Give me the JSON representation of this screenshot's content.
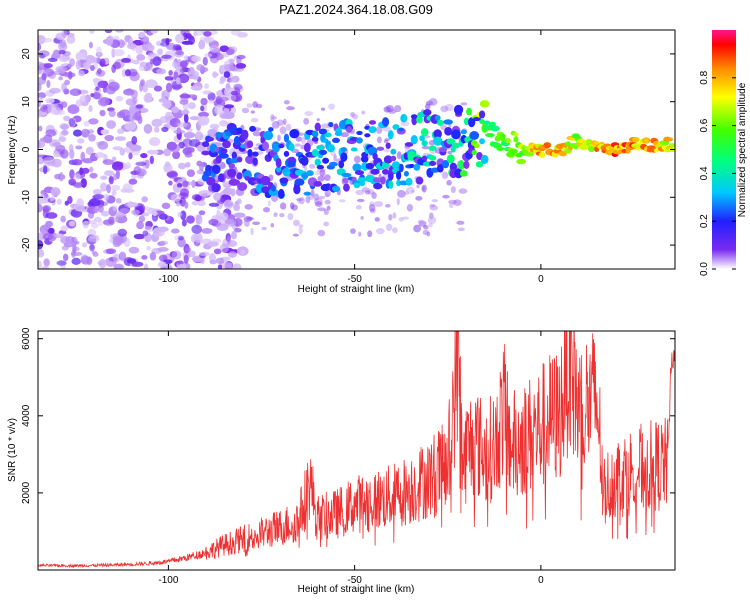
{
  "title": "PAZ1.2024.364.18.08.G09",
  "chart_data": [
    {
      "type": "heatmap",
      "xlabel": "Height of straight line (km)",
      "ylabel": "Frequency (Hz)",
      "xlim": [
        -135,
        36
      ],
      "ylim": [
        -25,
        25
      ],
      "xticks": [
        -100,
        -50,
        0
      ],
      "yticks": [
        -20,
        -10,
        0,
        10,
        20
      ],
      "colorbar": {
        "label": "Normalized spectral amplitude",
        "range": [
          0.0,
          1.0
        ],
        "ticks": [
          0.0,
          0.2,
          0.4,
          0.6,
          0.8
        ],
        "tick_labels": [
          "0.0",
          "0.2",
          "0.4",
          "0.6",
          "0.8"
        ]
      },
      "signal_track": {
        "x": [
          -90,
          -80,
          -70,
          -60,
          -50,
          -40,
          -30,
          -20,
          -15,
          -10,
          -5,
          0,
          5,
          10,
          15,
          20,
          25,
          30,
          35
        ],
        "frequency": [
          -2,
          -2,
          -3,
          -2,
          -1,
          -1,
          1,
          2,
          3,
          1,
          0,
          0,
          0,
          2,
          0,
          0,
          1,
          1,
          1
        ],
        "amplitude": [
          0.15,
          0.18,
          0.2,
          0.22,
          0.22,
          0.25,
          0.3,
          0.35,
          0.55,
          0.6,
          0.7,
          0.9,
          0.85,
          0.75,
          0.85,
          0.9,
          0.9,
          0.85,
          0.8
        ]
      }
    },
    {
      "type": "line",
      "xlabel": "Height of straight line (km)",
      "ylabel": "SNR (10 * v/v)",
      "xlim": [
        -135,
        36
      ],
      "ylim": [
        0,
        6200
      ],
      "xticks": [
        -100,
        -50,
        0
      ],
      "yticks": [
        2000,
        4000,
        6000
      ],
      "color": "#ee3030",
      "series": [
        {
          "x": [
            -135,
            -125,
            -115,
            -105,
            -100,
            -95,
            -90,
            -85,
            -80,
            -75,
            -70,
            -65,
            -62,
            -60,
            -55,
            -50,
            -45,
            -40,
            -35,
            -30,
            -25,
            -22,
            -21,
            -20,
            -18,
            -15,
            -12,
            -10,
            -8,
            -5,
            -3,
            0,
            2,
            5,
            8,
            10,
            12,
            15,
            17,
            20,
            25,
            30,
            34,
            35,
            36
          ],
          "y": [
            120,
            110,
            130,
            170,
            220,
            320,
            450,
            650,
            800,
            950,
            1100,
            1300,
            2300,
            1350,
            1450,
            1700,
            1800,
            1900,
            2100,
            2400,
            2700,
            6000,
            2600,
            3100,
            3400,
            3000,
            3300,
            4200,
            3200,
            3400,
            3500,
            3700,
            3900,
            4000,
            5800,
            4100,
            4300,
            4400,
            2100,
            2400,
            2600,
            2700,
            2750,
            5300,
            5400
          ]
        }
      ]
    }
  ]
}
